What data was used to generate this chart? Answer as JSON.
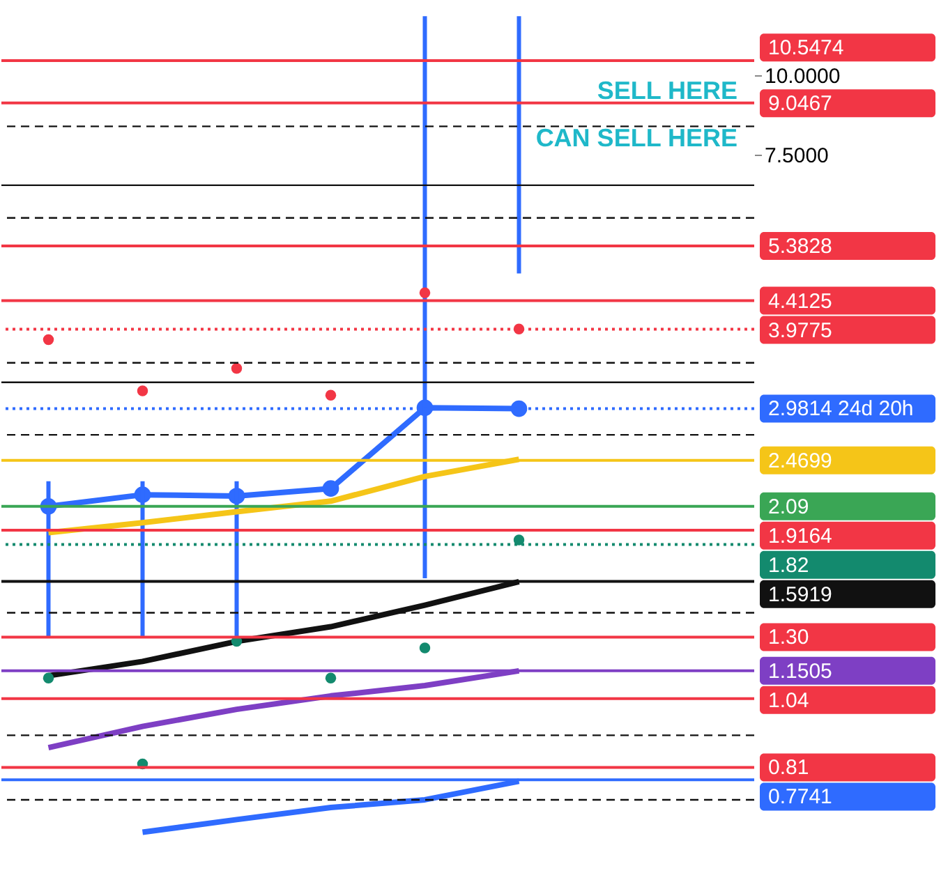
{
  "chart_data": {
    "type": "line",
    "categories": [
      null,
      null,
      null,
      null,
      null,
      null,
      null,
      null
    ],
    "series": [
      {
        "color": "#2f6bff",
        "values": [
          2.09,
          2.18,
          2.17,
          2.23,
          2.99,
          2.98,
          null,
          null
        ],
        "marker": "circle",
        "errors": [
          [
            1.3,
            2.29
          ],
          [
            1.3,
            2.29
          ],
          [
            1.3,
            2.29
          ],
          null,
          [
            1.61,
            12.4
          ],
          [
            4.87,
            12.4
          ],
          null,
          null
        ]
      },
      {
        "color": "#f5c518",
        "values": [
          1.9,
          1.97,
          2.05,
          2.13,
          2.33,
          2.48,
          null,
          null
        ],
        "marker": "none"
      },
      {
        "color": "#111111",
        "values": [
          1.13,
          1.19,
          1.28,
          1.35,
          1.46,
          1.59,
          null,
          null
        ],
        "marker": "none"
      },
      {
        "color": "#7e3fc4",
        "values": [
          0.87,
          0.94,
          1.0,
          1.05,
          1.09,
          1.15,
          null,
          null
        ],
        "marker": "none"
      },
      {
        "color": "#2f6bff",
        "values": [
          null,
          0.64,
          0.67,
          0.7,
          0.72,
          0.77,
          null,
          null
        ],
        "marker": "none"
      },
      {
        "type": "scatter",
        "color": "#f23645",
        "values": [
          3.83,
          3.18,
          3.45,
          3.13,
          4.54,
          3.98,
          null,
          null
        ],
        "marker": "circle"
      },
      {
        "type": "scatter",
        "color": "#138a6e",
        "values": [
          1.12,
          0.82,
          1.28,
          1.12,
          1.25,
          1.85,
          null,
          null
        ],
        "marker": "circle"
      }
    ],
    "log": true,
    "ylim": [
      0.6,
      12.5
    ],
    "yticks": [
      {
        "value": 10,
        "label": "10.0000"
      },
      {
        "value": 7.5,
        "label": "7.5000"
      }
    ],
    "tick_labels": "y",
    "grid": false,
    "ref_lines": [
      {
        "axis": "y",
        "value": 10.5474,
        "label": "10.5474",
        "color": "#f23645"
      },
      {
        "axis": "y",
        "value": 9.0467,
        "label": "9.0467",
        "color": "#f23645"
      },
      {
        "axis": "y",
        "value": 5.3828,
        "label": "5.3828",
        "color": "#f23645"
      },
      {
        "axis": "y",
        "value": 4.4125,
        "label": "4.4125",
        "color": "#f23645"
      },
      {
        "axis": "y",
        "value": 3.9775,
        "label": "3.9775",
        "color": "#f23645",
        "line_style": "dotted"
      },
      {
        "axis": "y",
        "value": 2.9814,
        "label": "2.9814 24d 20h",
        "color": "#2f6bff",
        "line_style": "dotted"
      },
      {
        "axis": "y",
        "value": 2.4699,
        "label": "2.4699",
        "color": "#f5c518"
      },
      {
        "axis": "y",
        "value": 2.09,
        "label": "2.09",
        "color": "#3aa655"
      },
      {
        "axis": "y",
        "value": 1.9164,
        "label": "1.9164",
        "color": "#f23645"
      },
      {
        "axis": "y",
        "value": 1.82,
        "label": "1.82",
        "color": "#138a6e",
        "line_style": "dotted"
      },
      {
        "axis": "y",
        "value": 1.5919,
        "label": "1.5919",
        "color": "#111111"
      },
      {
        "axis": "y",
        "value": 1.3,
        "label": "1.30",
        "color": "#f23645"
      },
      {
        "axis": "y",
        "value": 1.1505,
        "label": "1.1505",
        "color": "#7e3fc4"
      },
      {
        "axis": "y",
        "value": 1.04,
        "label": "1.04",
        "color": "#f23645"
      },
      {
        "axis": "y",
        "value": 0.81,
        "label": "0.81",
        "color": "#f23645"
      },
      {
        "axis": "y",
        "value": 0.7741,
        "label": "0.7741",
        "color": "#2f6bff"
      },
      {
        "axis": "y",
        "value": 8.31,
        "label": null,
        "color": "#111111",
        "line_style": "dashed"
      },
      {
        "axis": "y",
        "value": 6.71,
        "label": null,
        "color": "#111111"
      },
      {
        "axis": "y",
        "value": 5.96,
        "label": null,
        "color": "#111111",
        "line_style": "dashed"
      },
      {
        "axis": "y",
        "value": 3.52,
        "label": null,
        "color": "#111111",
        "line_style": "dashed"
      },
      {
        "axis": "y",
        "value": 3.28,
        "label": null,
        "color": "#111111"
      },
      {
        "axis": "y",
        "value": 2.71,
        "label": null,
        "color": "#111111",
        "line_style": "dashed"
      },
      {
        "axis": "y",
        "value": 1.42,
        "label": null,
        "color": "#111111",
        "line_style": "dashed"
      },
      {
        "axis": "y",
        "value": 0.91,
        "label": null,
        "color": "#111111",
        "line_style": "dashed"
      },
      {
        "axis": "y",
        "value": 0.72,
        "label": null,
        "color": "#111111",
        "line_style": "dashed"
      }
    ],
    "annotations": [
      "SELL HERE",
      "CAN SELL HERE"
    ]
  }
}
